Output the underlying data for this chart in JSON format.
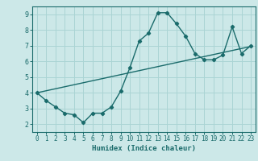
{
  "xlabel": "Humidex (Indice chaleur)",
  "bg_color": "#cce8e8",
  "line_color": "#1a6b6b",
  "grid_color": "#aad4d4",
  "xlim": [
    -0.5,
    23.5
  ],
  "ylim": [
    1.5,
    9.5
  ],
  "xticks": [
    0,
    1,
    2,
    3,
    4,
    5,
    6,
    7,
    8,
    9,
    10,
    11,
    12,
    13,
    14,
    15,
    16,
    17,
    18,
    19,
    20,
    21,
    22,
    23
  ],
  "yticks": [
    2,
    3,
    4,
    5,
    6,
    7,
    8,
    9
  ],
  "curve_x": [
    0,
    1,
    2,
    3,
    4,
    5,
    6,
    7,
    8,
    9,
    10,
    11,
    12,
    13,
    14,
    15,
    16,
    17,
    18,
    19,
    20,
    21,
    22,
    23
  ],
  "curve_y": [
    4.0,
    3.5,
    3.1,
    2.7,
    2.6,
    2.1,
    2.7,
    2.7,
    3.1,
    4.1,
    5.6,
    7.3,
    7.8,
    9.1,
    9.1,
    8.4,
    7.6,
    6.5,
    6.1,
    6.1,
    6.4,
    8.2,
    6.5,
    7.0
  ],
  "trend_x": [
    0,
    23
  ],
  "trend_y": [
    4.0,
    6.95
  ]
}
